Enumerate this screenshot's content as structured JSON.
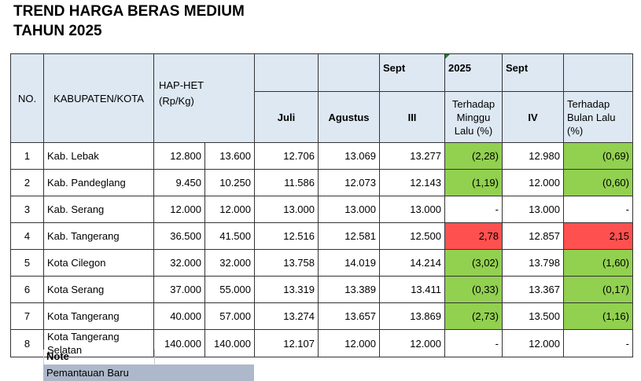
{
  "title": {
    "line1": "TREND HARGA BERAS MEDIUM",
    "line2": "TAHUN 2025"
  },
  "header": {
    "no": "NO.",
    "kabupaten": "KABUPATEN/KOTA",
    "hap_line1": "HAP-HET",
    "hap_line2": "(Rp/Kg)",
    "sept_a": "Sept",
    "year": "2025",
    "sept_b": "Sept",
    "juli": "Juli",
    "agustus": "Agustus",
    "week3": "III",
    "minggu": "Terhadap Minggu Lalu (%)",
    "week4": "IV",
    "bulan": "Terhadap Bulan Lalu (%)"
  },
  "rows": [
    {
      "no": "1",
      "name": "Kab. Lebak",
      "hap": "12.800",
      "het": "13.600",
      "juli": "12.706",
      "agustus": "13.069",
      "w3": "13.277",
      "wk": "(2,28)",
      "w4": "12.980",
      "mo": "(0,69)",
      "wk_color": "#92d050",
      "mo_color": "#92d050"
    },
    {
      "no": "2",
      "name": "Kab. Pandeglang",
      "hap": "9.450",
      "het": "10.250",
      "juli": "11.586",
      "agustus": "12.073",
      "w3": "12.143",
      "wk": "(1,19)",
      "w4": "12.000",
      "mo": "(0,60)",
      "wk_color": "#92d050",
      "mo_color": "#92d050"
    },
    {
      "no": "3",
      "name": "Kab. Serang",
      "hap": "12.000",
      "het": "12.000",
      "juli": "13.000",
      "agustus": "13.000",
      "w3": "13.000",
      "wk": "-",
      "w4": "13.000",
      "mo": "-",
      "wk_color": "#ffffff",
      "mo_color": "#ffffff"
    },
    {
      "no": "4",
      "name": "Kab. Tangerang",
      "hap": "36.500",
      "het": "41.500",
      "juli": "12.516",
      "agustus": "12.581",
      "w3": "12.500",
      "wk": "2,78",
      "w4": "12.857",
      "mo": "2,15",
      "wk_color": "#ff5050",
      "mo_color": "#ff5050"
    },
    {
      "no": "5",
      "name": "Kota Cilegon",
      "hap": "32.000",
      "het": "32.000",
      "juli": "13.758",
      "agustus": "14.019",
      "w3": "14.214",
      "wk": "(3,02)",
      "w4": "13.798",
      "mo": "(1,60)",
      "wk_color": "#92d050",
      "mo_color": "#92d050"
    },
    {
      "no": "6",
      "name": "Kota Serang",
      "hap": "37.000",
      "het": "55.000",
      "juli": "13.319",
      "agustus": "13.389",
      "w3": "13.411",
      "wk": "(0,33)",
      "w4": "13.367",
      "mo": "(0,17)",
      "wk_color": "#92d050",
      "mo_color": "#92d050"
    },
    {
      "no": "7",
      "name": "Kota Tangerang",
      "hap": "40.000",
      "het": "57.000",
      "juli": "13.274",
      "agustus": "13.657",
      "w3": "13.869",
      "wk": "(2,73)",
      "w4": "13.500",
      "mo": "(1,16)",
      "wk_color": "#92d050",
      "mo_color": "#92d050"
    },
    {
      "no": "8",
      "name": "Kota Tangerang Selatan",
      "hap": "140.000",
      "het": "140.000",
      "juli": "12.107",
      "agustus": "12.000",
      "w3": "12.000",
      "wk": "-",
      "w4": "12.000",
      "mo": "-",
      "wk_color": "#ffffff",
      "mo_color": "#ffffff"
    }
  ],
  "note": {
    "label": "Note",
    "legend": "Pemantauan Baru",
    "legend_color": "#adb9ca"
  }
}
